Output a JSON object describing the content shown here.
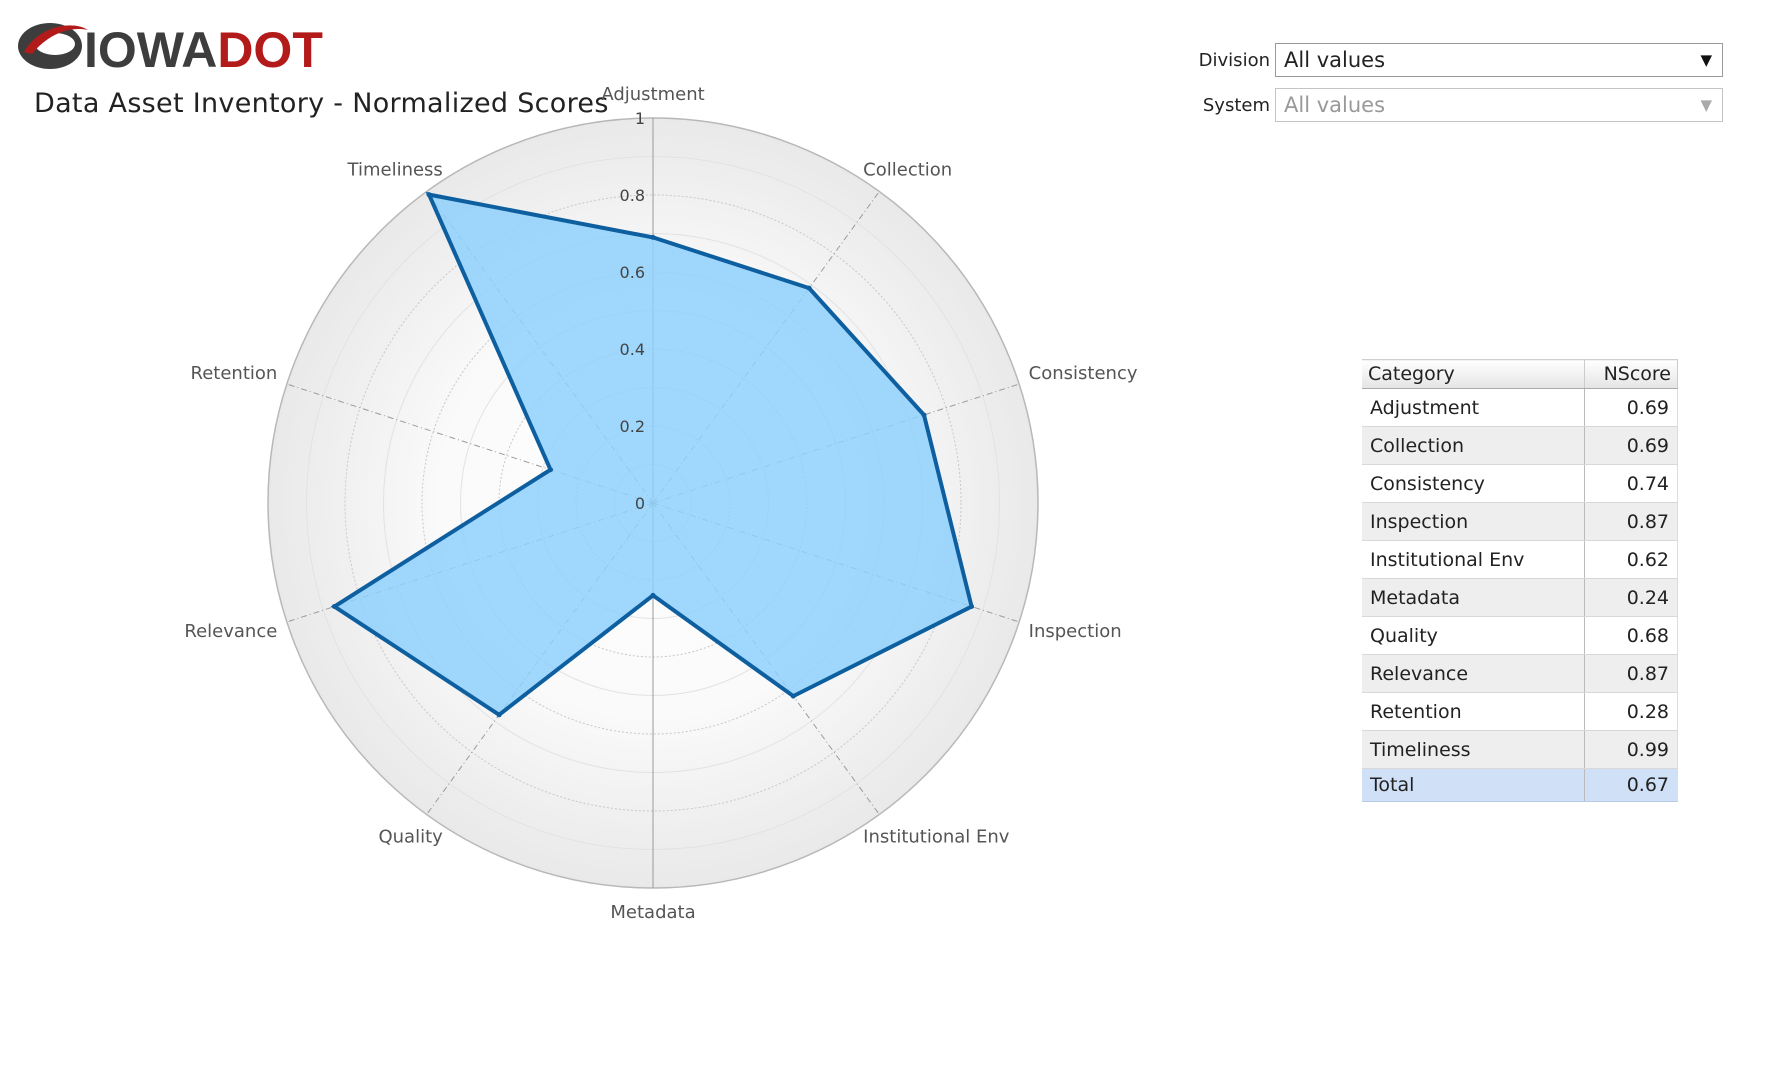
{
  "header": {
    "logo": {
      "text_gray": "IOWA",
      "text_red": "DOT",
      "colors": {
        "gray": "#3d3d3d",
        "red": "#b31b1b"
      }
    },
    "title": "Data Asset Inventory - Normalized Scores"
  },
  "filters": {
    "division": {
      "label": "Division",
      "value": "All values",
      "arrow_icon": "dropdown-arrow-icon"
    },
    "system": {
      "label": "System",
      "value": "All values",
      "disabled": true,
      "arrow_icon": "dropdown-arrow-icon"
    }
  },
  "chart_data": {
    "type": "radar",
    "title": "",
    "axes": [
      "Adjustment",
      "Collection",
      "Consistency",
      "Inspection",
      "Institutional Env",
      "Metadata",
      "Quality",
      "Relevance",
      "Retention",
      "Timeliness"
    ],
    "series": [
      {
        "values": [
          0.69,
          0.69,
          0.74,
          0.87,
          0.62,
          0.24,
          0.68,
          0.87,
          0.28,
          0.99
        ]
      }
    ],
    "rlim": [
      0,
      1
    ],
    "rticks": [
      "0",
      "0.2",
      "0.4",
      "0.6",
      "0.8",
      "1"
    ],
    "grid": true,
    "legend": "none",
    "colors": {
      "fill": "#8fd0fb",
      "stroke": "#0e5fa0",
      "grid": "#c8c8c8"
    }
  },
  "table": {
    "headers": {
      "category": "Category",
      "score": "NScore"
    },
    "rows": [
      {
        "category": "Adjustment",
        "score": "0.69"
      },
      {
        "category": "Collection",
        "score": "0.69"
      },
      {
        "category": "Consistency",
        "score": "0.74"
      },
      {
        "category": "Inspection",
        "score": "0.87"
      },
      {
        "category": "Institutional Env",
        "score": "0.62"
      },
      {
        "category": "Metadata",
        "score": "0.24"
      },
      {
        "category": "Quality",
        "score": "0.68"
      },
      {
        "category": "Relevance",
        "score": "0.87"
      },
      {
        "category": "Retention",
        "score": "0.28"
      },
      {
        "category": "Timeliness",
        "score": "0.99"
      }
    ],
    "total": {
      "category": "Total",
      "score": "0.67"
    }
  }
}
